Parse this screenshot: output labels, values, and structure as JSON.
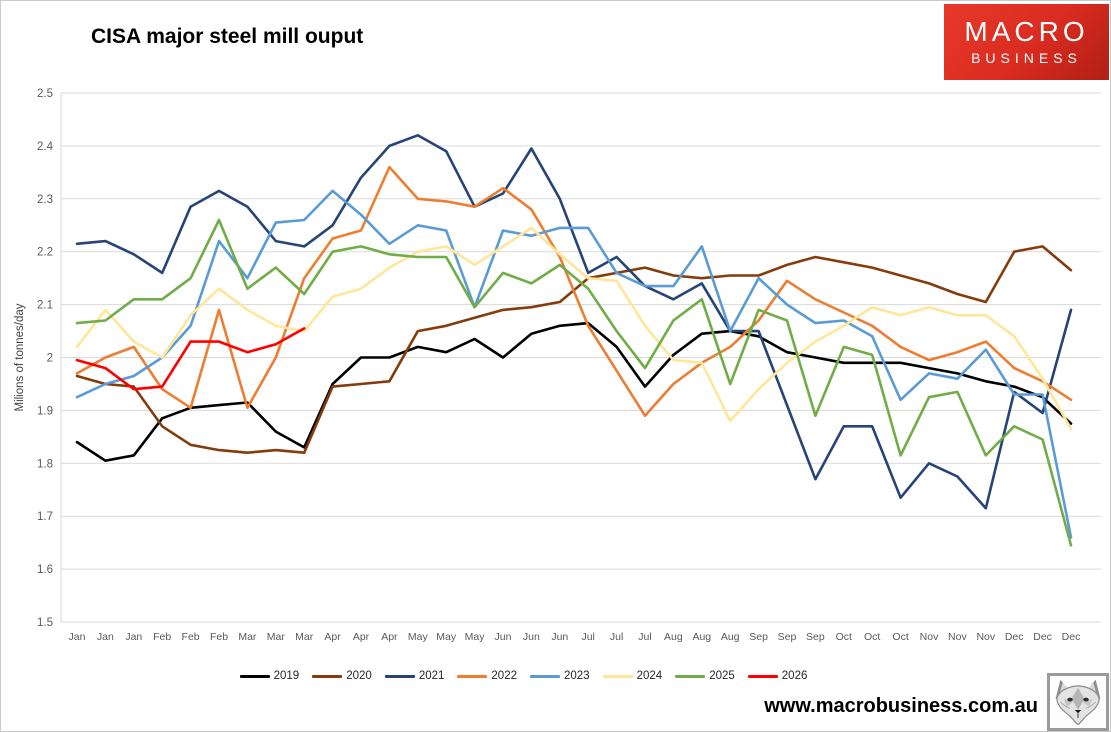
{
  "header": {
    "title": "CISA major steel mill ouput"
  },
  "logo": {
    "line1": "MACRO",
    "line2": "BUSINESS",
    "bg_color": "#d92b1f",
    "text_color": "#ffffff"
  },
  "watermark": "www.macrobusiness.com.au",
  "footer_icon": "fox-head-logo",
  "chart_data": {
    "type": "line",
    "title": "CISA major steel mill ouput",
    "xlabel": "",
    "ylabel": "Milions of tonnes/day",
    "ylim": [
      1.5,
      2.5
    ],
    "ytick_step": 0.1,
    "grid": true,
    "legend_position": "bottom",
    "grid_color": "#d9d9d9",
    "tick_text_color": "#595959",
    "categories": [
      "Jan",
      "Jan",
      "Jan",
      "Feb",
      "Feb",
      "Feb",
      "Mar",
      "Mar",
      "Mar",
      "Apr",
      "Apr",
      "Apr",
      "May",
      "May",
      "May",
      "Jun",
      "Jun",
      "Jun",
      "Jul",
      "Jul",
      "Jul",
      "Aug",
      "Aug",
      "Aug",
      "Sep",
      "Sep",
      "Sep",
      "Oct",
      "Oct",
      "Oct",
      "Nov",
      "Nov",
      "Nov",
      "Dec",
      "Dec",
      "Dec"
    ],
    "series": [
      {
        "name": "2019",
        "color": "#000000",
        "values": [
          1.84,
          1.805,
          1.815,
          1.885,
          1.905,
          1.91,
          1.915,
          1.86,
          1.83,
          1.95,
          2.0,
          2.0,
          2.02,
          2.01,
          2.035,
          2.0,
          2.045,
          2.06,
          2.065,
          2.02,
          1.945,
          2.005,
          2.045,
          2.05,
          2.04,
          2.01,
          2.0,
          1.99,
          1.99,
          1.99,
          1.98,
          1.97,
          1.955,
          1.945,
          1.925,
          1.875
        ]
      },
      {
        "name": "2020",
        "color": "#843c0c",
        "values": [
          1.965,
          1.95,
          1.945,
          1.87,
          1.835,
          1.825,
          1.82,
          1.825,
          1.82,
          1.945,
          1.95,
          1.955,
          2.05,
          2.06,
          2.075,
          2.09,
          2.095,
          2.105,
          2.15,
          2.16,
          2.17,
          2.155,
          2.15,
          2.155,
          2.155,
          2.175,
          2.19,
          2.18,
          2.17,
          2.155,
          2.14,
          2.12,
          2.105,
          2.2,
          2.21,
          2.165
        ]
      },
      {
        "name": "2021",
        "color": "#264478",
        "values": [
          2.215,
          2.22,
          2.195,
          2.16,
          2.285,
          2.315,
          2.285,
          2.22,
          2.21,
          2.25,
          2.34,
          2.4,
          2.42,
          2.39,
          2.285,
          2.31,
          2.395,
          2.3,
          2.16,
          2.19,
          2.135,
          2.11,
          2.14,
          2.05,
          2.05,
          1.91,
          1.77,
          1.87,
          1.87,
          1.735,
          1.8,
          1.775,
          1.715,
          1.935,
          1.895,
          2.09
        ]
      },
      {
        "name": "2022",
        "color": "#ed7d31",
        "values": [
          1.97,
          2.0,
          2.02,
          1.94,
          1.905,
          2.09,
          1.905,
          2.0,
          2.15,
          2.225,
          2.24,
          2.36,
          2.3,
          2.295,
          2.285,
          2.32,
          2.28,
          2.19,
          2.06,
          1.975,
          1.89,
          1.95,
          1.99,
          2.02,
          2.07,
          2.145,
          2.11,
          2.085,
          2.06,
          2.02,
          1.995,
          2.01,
          2.03,
          1.98,
          1.955,
          1.92
        ]
      },
      {
        "name": "2023",
        "color": "#5b9bd5",
        "values": [
          1.925,
          1.95,
          1.965,
          2.0,
          2.06,
          2.22,
          2.15,
          2.255,
          2.26,
          2.315,
          2.27,
          2.215,
          2.25,
          2.24,
          2.095,
          2.24,
          2.23,
          2.245,
          2.245,
          2.16,
          2.135,
          2.135,
          2.21,
          2.05,
          2.15,
          2.1,
          2.065,
          2.07,
          2.04,
          1.92,
          1.97,
          1.96,
          2.015,
          1.93,
          1.93,
          1.66
        ]
      },
      {
        "name": "2024",
        "color": "#ffe699",
        "values": [
          2.02,
          2.09,
          2.03,
          2.0,
          2.08,
          2.13,
          2.09,
          2.06,
          2.05,
          2.115,
          2.13,
          2.17,
          2.2,
          2.21,
          2.175,
          2.21,
          2.245,
          2.195,
          2.15,
          2.145,
          2.06,
          1.995,
          1.99,
          1.88,
          1.94,
          1.99,
          2.03,
          2.06,
          2.095,
          2.08,
          2.095,
          2.08,
          2.08,
          2.04,
          1.96,
          1.865
        ]
      },
      {
        "name": "2025",
        "color": "#70ad47",
        "values": [
          2.065,
          2.07,
          2.11,
          2.11,
          2.15,
          2.26,
          2.13,
          2.17,
          2.12,
          2.2,
          2.21,
          2.195,
          2.19,
          2.19,
          2.095,
          2.16,
          2.14,
          2.175,
          2.13,
          2.05,
          1.98,
          2.07,
          2.11,
          1.95,
          2.09,
          2.07,
          1.89,
          2.02,
          2.005,
          1.815,
          1.925,
          1.935,
          1.815,
          1.87,
          1.845,
          1.645
        ]
      },
      {
        "name": "2026",
        "color": "#ff0000",
        "values": [
          1.995,
          1.98,
          1.94,
          1.945,
          2.03,
          2.03,
          2.01,
          2.025,
          2.055
        ]
      }
    ]
  }
}
